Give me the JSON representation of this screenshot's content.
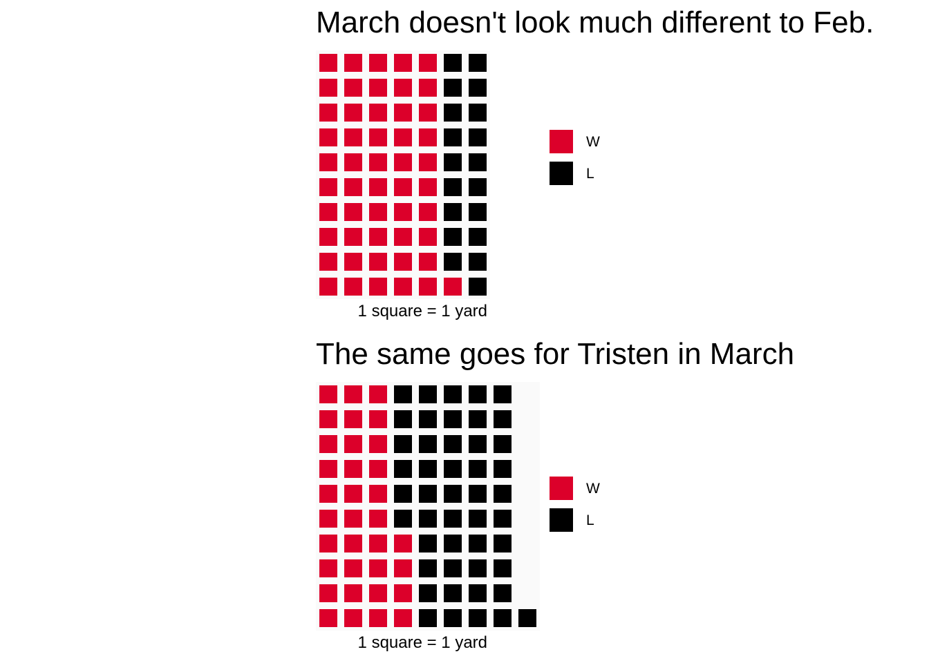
{
  "colors": {
    "W": "#dc002a",
    "L": "#000000",
    "background": "#ffffff"
  },
  "chart_data": [
    {
      "type": "waffle",
      "title": "March doesn't look much different to Feb.",
      "caption": "1 square = 1 yard",
      "categories": [
        "W",
        "L"
      ],
      "values": [
        51,
        19
      ],
      "rows": 10,
      "legend": {
        "position": "right",
        "items": [
          {
            "label": "W",
            "color_key": "W"
          },
          {
            "label": "L",
            "color_key": "L"
          }
        ]
      },
      "grid": false
    },
    {
      "type": "waffle",
      "title": "The same goes for Tristen in March",
      "caption": "1 square = 1 yard",
      "categories": [
        "W",
        "L"
      ],
      "values": [
        34,
        47
      ],
      "rows": 10,
      "legend": {
        "position": "right",
        "items": [
          {
            "label": "W",
            "color_key": "W"
          },
          {
            "label": "L",
            "color_key": "L"
          }
        ]
      },
      "grid": false
    }
  ]
}
